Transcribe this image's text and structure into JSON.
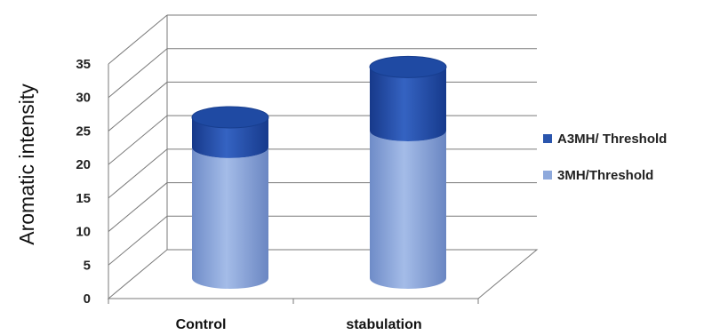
{
  "chart_data": {
    "type": "bar",
    "stacked": true,
    "style": "3d-cylinder",
    "categories": [
      "Control",
      "stabulation"
    ],
    "series": [
      {
        "name": "3MH/Threshold",
        "values": [
          19.5,
          22
        ],
        "color": "#8ea9dc"
      },
      {
        "name": "A3MH/ Threshold",
        "values": [
          4.5,
          9.5
        ],
        "color": "#2a55ad"
      }
    ],
    "ylabel": "Aromatic intensity",
    "xlabel": "",
    "ylim": [
      0,
      35
    ],
    "yticks": [
      "0",
      "5",
      "10",
      "15",
      "20",
      "25",
      "30",
      "35"
    ],
    "grid": true,
    "legend_position": "right",
    "legend": [
      "A3MH/ Threshold",
      "3MH/Threshold"
    ]
  }
}
